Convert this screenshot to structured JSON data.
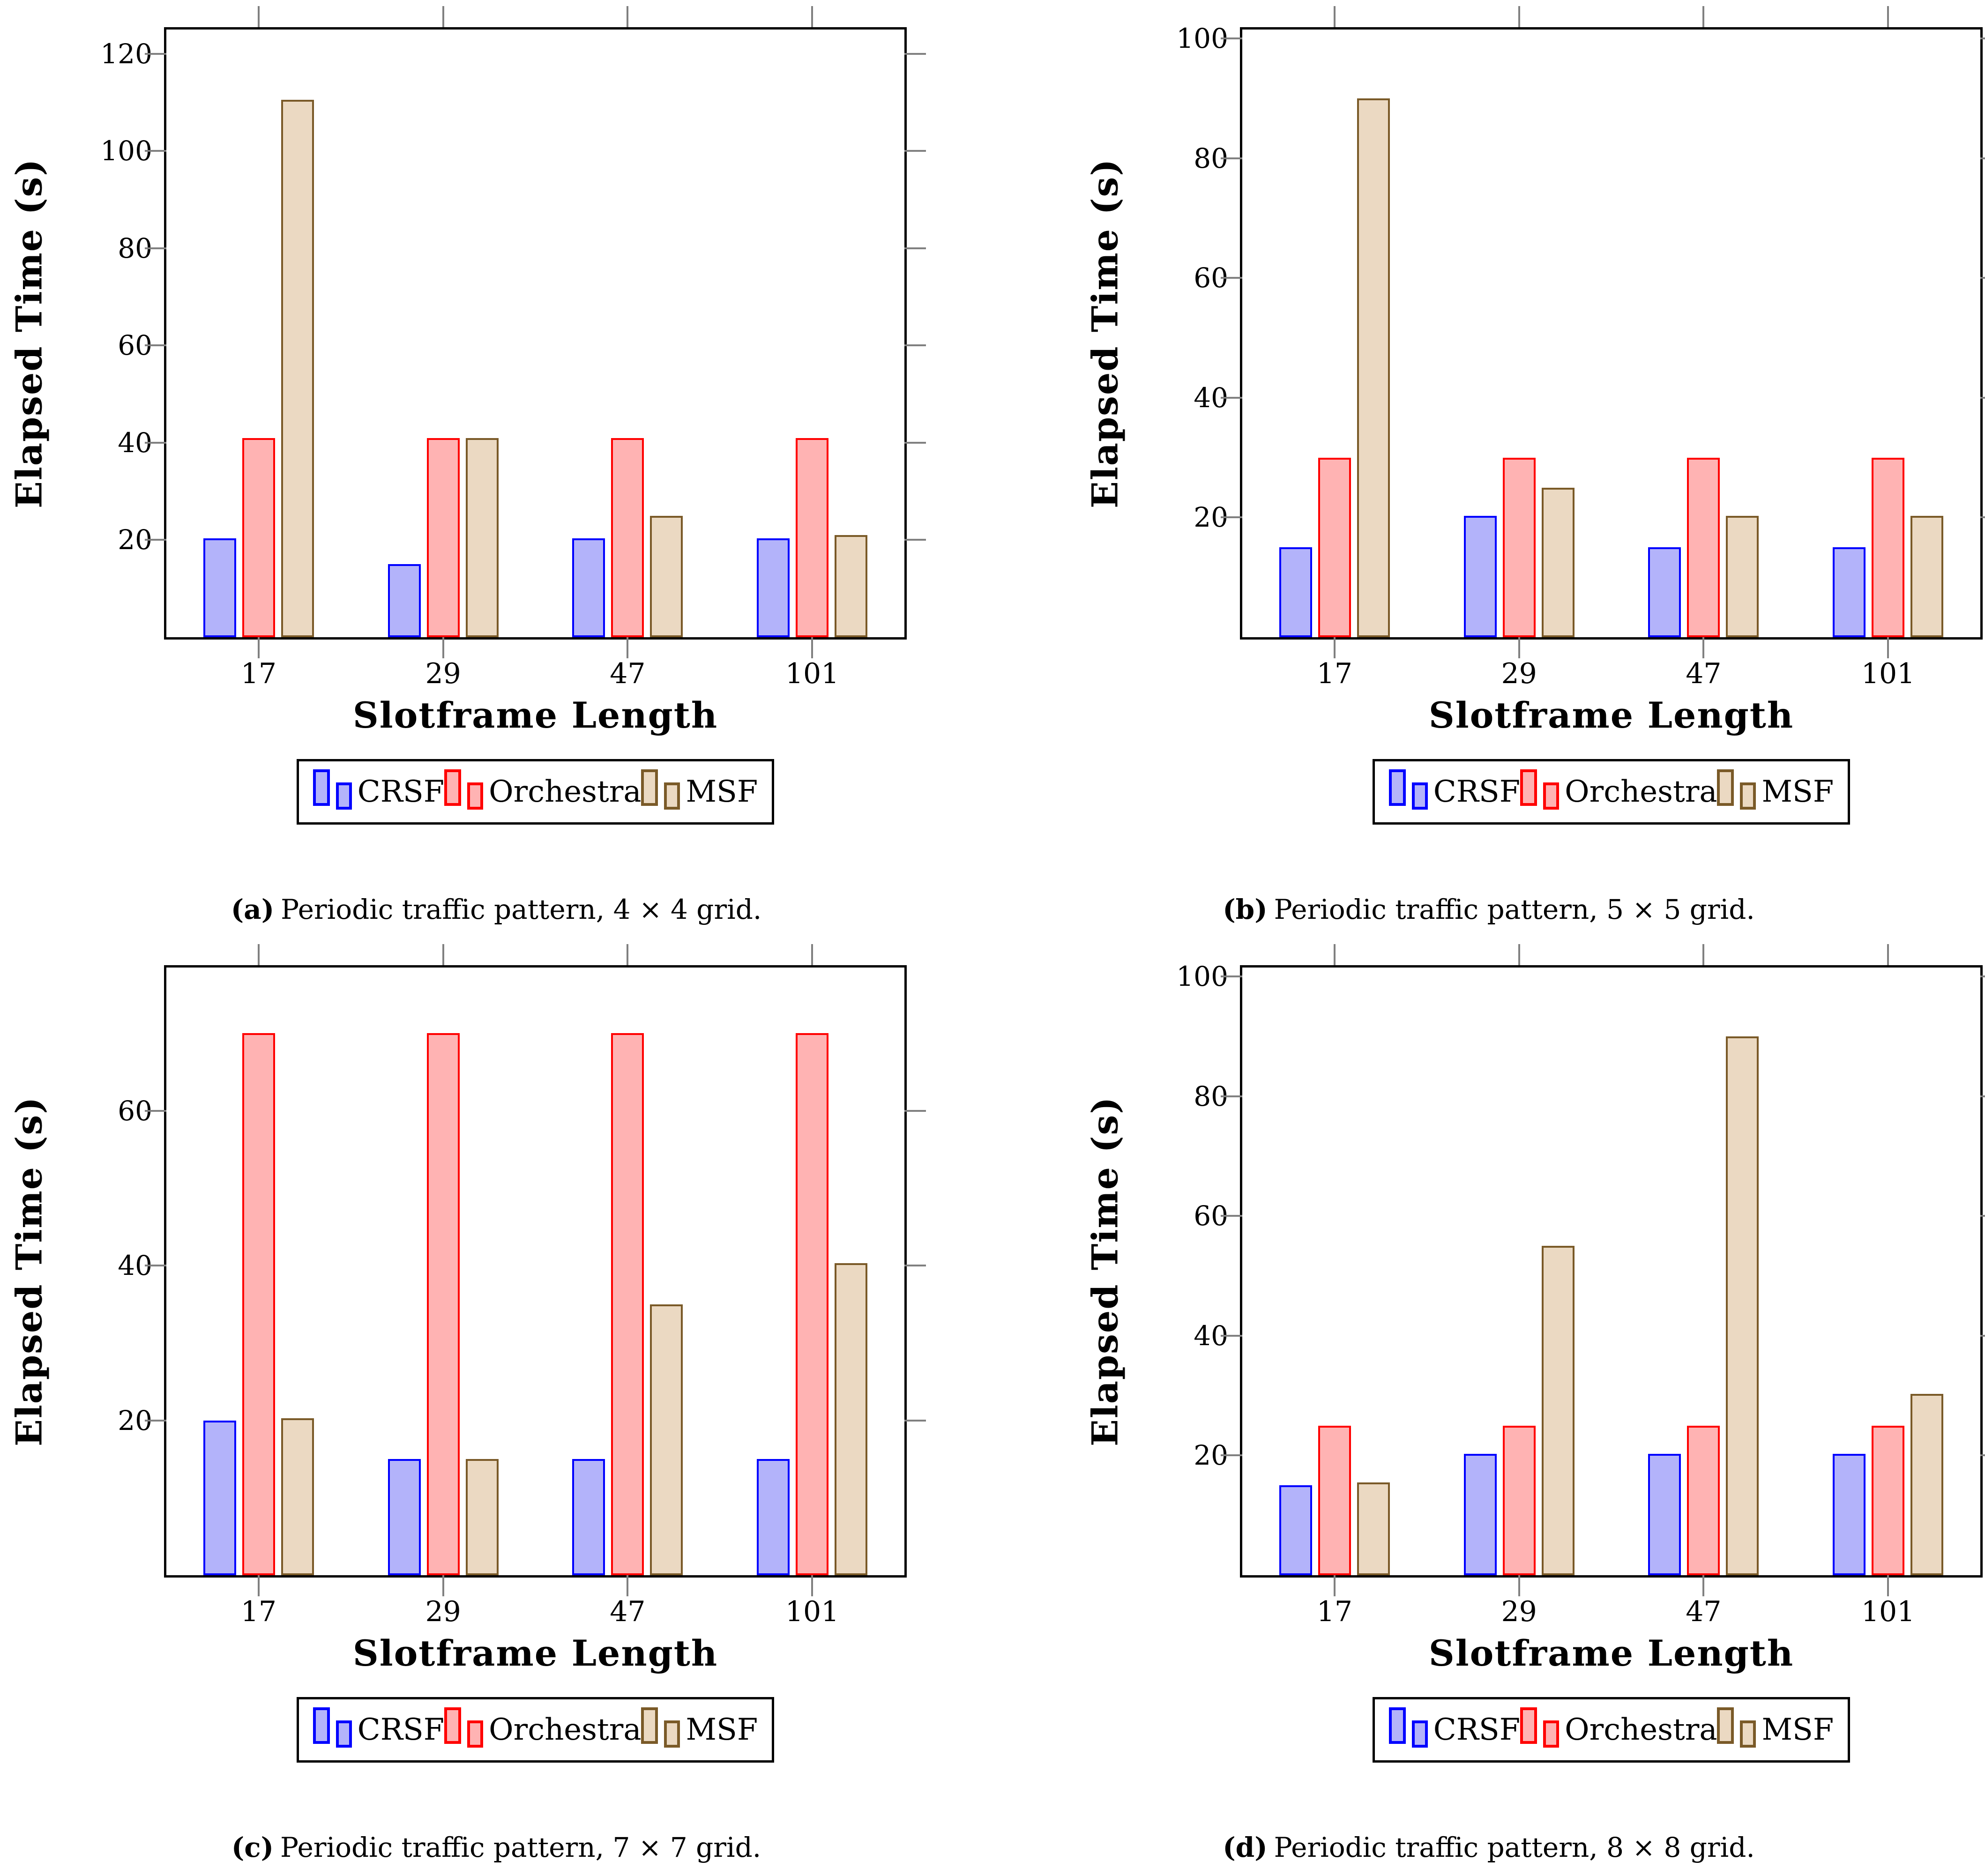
{
  "figure": {
    "background": "#ffffff",
    "axis_frame_color": "#000000",
    "tick_color": "#808080"
  },
  "series_styles": [
    {
      "name": "CRSF",
      "fill": "#b3b3fa",
      "border": "#0000ff"
    },
    {
      "name": "Orchestra",
      "fill": "#ffb3b3",
      "border": "#ff0000"
    },
    {
      "name": "MSF",
      "fill": "#ebd9c2",
      "border": "#7a5a28"
    }
  ],
  "chart_data": [
    {
      "type": "bar",
      "panel": "a",
      "caption_label": "(a)",
      "caption_text": "Periodic traffic pattern, 4 × 4 grid.",
      "title": "",
      "categories": [
        "17",
        "29",
        "47",
        "101"
      ],
      "series": [
        {
          "name": "CRSF",
          "values": [
            20.3,
            15,
            20.3,
            20.3
          ]
        },
        {
          "name": "Orchestra",
          "values": [
            41,
            41,
            41,
            41
          ]
        },
        {
          "name": "MSF",
          "values": [
            110.5,
            41,
            25,
            21
          ]
        }
      ],
      "xlabel": "Slotframe Length",
      "ylabel": "Elapsed Time (s)",
      "ylim": [
        0,
        125
      ],
      "yticks": [
        20,
        40,
        60,
        80,
        100,
        120
      ],
      "grid": false,
      "legend_position": "below"
    },
    {
      "type": "bar",
      "panel": "b",
      "caption_label": "(b)",
      "caption_text": "Periodic traffic pattern, 5 × 5 grid.",
      "title": "",
      "categories": [
        "17",
        "29",
        "47",
        "101"
      ],
      "series": [
        {
          "name": "CRSF",
          "values": [
            15,
            20.3,
            15,
            15
          ]
        },
        {
          "name": "Orchestra",
          "values": [
            30,
            30,
            30,
            30
          ]
        },
        {
          "name": "MSF",
          "values": [
            90,
            25,
            20.3,
            20.3
          ]
        }
      ],
      "xlabel": "Slotframe Length",
      "ylabel": "Elapsed Time (s)",
      "ylim": [
        0,
        101.5
      ],
      "yticks": [
        20,
        40,
        60,
        80,
        100
      ],
      "grid": false,
      "legend_position": "below"
    },
    {
      "type": "bar",
      "panel": "c",
      "caption_label": "(c)",
      "caption_text": "Periodic traffic pattern, 7 × 7 grid.",
      "title": "",
      "categories": [
        "17",
        "29",
        "47",
        "101"
      ],
      "series": [
        {
          "name": "CRSF",
          "values": [
            20,
            15,
            15,
            15
          ]
        },
        {
          "name": "Orchestra",
          "values": [
            70,
            70,
            70,
            70
          ]
        },
        {
          "name": "MSF",
          "values": [
            20.3,
            15,
            35,
            40.3
          ]
        }
      ],
      "xlabel": "Slotframe Length",
      "ylabel": "Elapsed Time (s)",
      "ylim": [
        0,
        78.5
      ],
      "yticks": [
        20,
        40,
        60
      ],
      "grid": false,
      "legend_position": "below"
    },
    {
      "type": "bar",
      "panel": "d",
      "caption_label": "(d)",
      "caption_text": "Periodic traffic pattern, 8 × 8 grid.",
      "title": "",
      "categories": [
        "17",
        "29",
        "47",
        "101"
      ],
      "series": [
        {
          "name": "CRSF",
          "values": [
            15,
            20.3,
            20.3,
            20.3
          ]
        },
        {
          "name": "Orchestra",
          "values": [
            25,
            25,
            25,
            25
          ]
        },
        {
          "name": "MSF",
          "values": [
            15.5,
            55,
            90,
            30.3
          ]
        }
      ],
      "xlabel": "Slotframe Length",
      "ylabel": "Elapsed Time (s)",
      "ylim": [
        0,
        101.5
      ],
      "yticks": [
        20,
        40,
        60,
        80,
        100
      ],
      "grid": false,
      "legend_position": "below"
    }
  ]
}
